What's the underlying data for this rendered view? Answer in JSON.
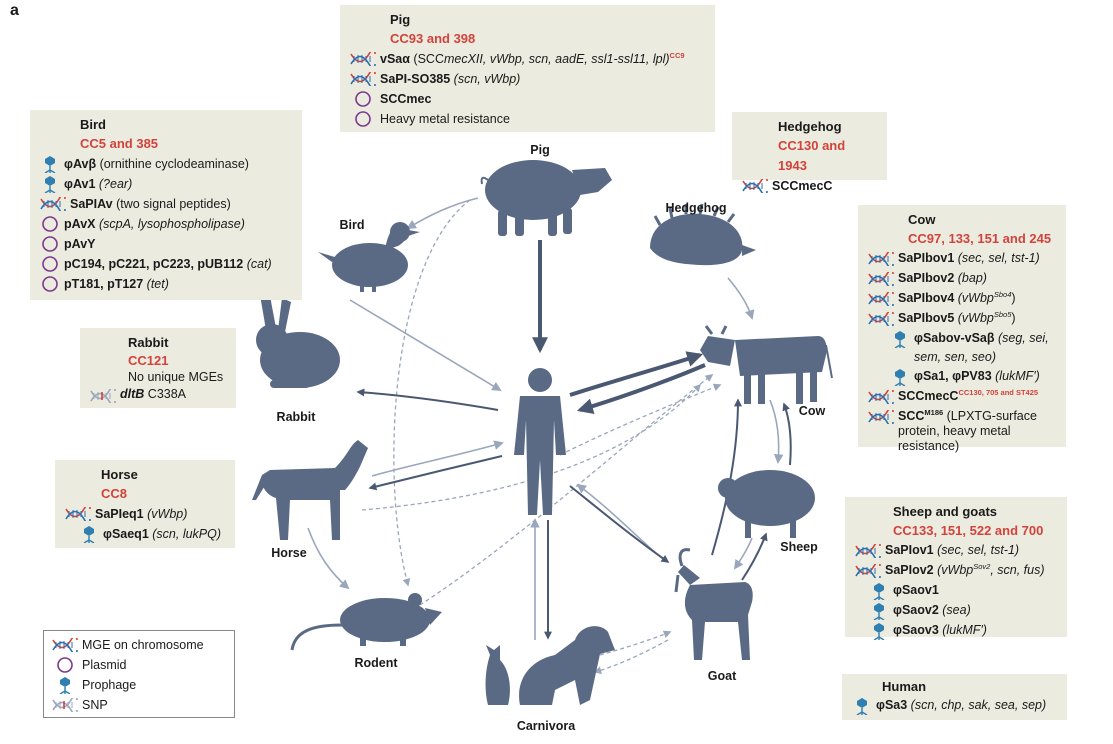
{
  "panel_label": "a",
  "animals": {
    "pig": "Pig",
    "bird": "Bird",
    "hedgehog": "Hedgehog",
    "cow": "Cow",
    "rabbit": "Rabbit",
    "horse": "Horse",
    "rodent": "Rodent",
    "carnivora": "Carnivora",
    "goat": "Goat",
    "sheep": "Sheep"
  },
  "boxes": {
    "pig": {
      "title": "Pig",
      "cc": "CC93 and 398",
      "rows": [
        {
          "icon": "dna-chromosome-icon",
          "name": "vSaα",
          "detail_open": " (SCC",
          "detail_mid_italic": "mec",
          "detail_rest": "XII, vWbp, scn, aadE, ssl1-ssl11, lpl)",
          "sup": "CC9"
        },
        {
          "icon": "dna-chromosome-icon",
          "name": "SaPI-SO385",
          "detail": " (scn, vWbp)"
        },
        {
          "icon": "plasmid-icon",
          "name": "SCCmec",
          "detail": ""
        },
        {
          "icon": "plasmid-icon",
          "name": "",
          "detail": "Heavy metal resistance"
        }
      ]
    },
    "bird": {
      "title": "Bird",
      "cc": "CC5 and 385",
      "rows": [
        {
          "icon": "prophage-icon",
          "name": "φAvβ",
          "detail": " (ornithine cyclodeaminase)"
        },
        {
          "icon": "prophage-icon",
          "name": "φAv1",
          "detail": " (?ear)"
        },
        {
          "icon": "dna-chromosome-icon",
          "name": "SaPIAv",
          "detail": " (two signal peptides)"
        },
        {
          "icon": "plasmid-icon",
          "name": "pAvX",
          "detail": " (scpA, lysophospholipase)"
        },
        {
          "icon": "plasmid-icon",
          "name": "pAvY",
          "detail": ""
        },
        {
          "icon": "plasmid-icon",
          "name": "pC194, pC221, pC223, pUB112",
          "detail": " (cat)"
        },
        {
          "icon": "plasmid-icon",
          "name": "pT181, pT127",
          "detail": " (tet)"
        }
      ]
    },
    "hedgehog": {
      "title": "Hedgehog",
      "cc": "CC130 and 1943",
      "rows": [
        {
          "icon": "dna-chromosome-icon",
          "name": "SCCmecC",
          "detail": ""
        }
      ]
    },
    "cow": {
      "title": "Cow",
      "cc": "CC97, 133, 151 and 245",
      "rows": [
        {
          "icon": "dna-chromosome-icon",
          "name": "SaPIbov1",
          "detail": " (sec, sel, tst-1)"
        },
        {
          "icon": "dna-chromosome-icon",
          "name": "SaPIbov2",
          "detail": " (bap)"
        },
        {
          "icon": "dna-chromosome-icon",
          "name": "SaPIbov4",
          "detail": " (vWbp",
          "sup": "Sbo4",
          "detail_after": ")"
        },
        {
          "icon": "dna-chromosome-icon",
          "name": "SaPIbov5",
          "detail": " (vWbp",
          "sup": "Sbo5",
          "detail_after": ")"
        },
        {
          "icon": "prophage-icon",
          "name": "φSabov-vSaβ",
          "detail": " (seg, sei, sem, sen, seo)"
        },
        {
          "icon": "prophage-icon",
          "name": "φSa1, φPV83",
          "detail": " (lukMF′)"
        },
        {
          "icon": "dna-chromosome-icon",
          "name": "SCCmecC",
          "detail": "",
          "sup": "CC130, 705 and ST425"
        },
        {
          "icon": "dna-chromosome-icon",
          "name": "SCC",
          "sup_plain": "M186",
          "detail": " (LPXTG-surface protein, heavy metal resistance)"
        }
      ]
    },
    "rabbit": {
      "title": "Rabbit",
      "cc": "CC121",
      "note": "No unique MGEs",
      "snp_gene": "dltB",
      "snp_change": " C338A"
    },
    "horse": {
      "title": "Horse",
      "cc": "CC8",
      "rows": [
        {
          "icon": "dna-chromosome-icon",
          "name": "SaPIeq1",
          "detail": " (vWbp)"
        },
        {
          "icon": "prophage-icon",
          "name": "φSaeq1",
          "detail": " (scn, lukPQ)"
        }
      ]
    },
    "sheep": {
      "title": "Sheep and goats",
      "cc": "CC133, 151, 522 and 700",
      "rows": [
        {
          "icon": "dna-chromosome-icon",
          "name": "SaPIov1",
          "detail": " (sec, sel, tst-1)"
        },
        {
          "icon": "dna-chromosome-icon",
          "name": "SaPIov2",
          "detail": " (vWbp",
          "sup": "Sov2",
          "detail_after": ", scn, fus)"
        },
        {
          "icon": "prophage-icon",
          "name": "φSaov1",
          "detail": ""
        },
        {
          "icon": "prophage-icon",
          "name": "φSaov2",
          "detail": " (sea)"
        },
        {
          "icon": "prophage-icon",
          "name": "φSaov3",
          "detail": " (lukMF′)"
        }
      ]
    },
    "human": {
      "title": "Human",
      "rows": [
        {
          "icon": "prophage-icon",
          "name": "φSa3",
          "detail": " (scn, chp, sak, sea, sep)"
        }
      ]
    }
  },
  "legend": {
    "items": [
      {
        "icon": "dna-chromosome-icon",
        "label": "MGE on chromosome"
      },
      {
        "icon": "plasmid-icon",
        "label": "Plasmid"
      },
      {
        "icon": "prophage-icon",
        "label": "Prophage"
      },
      {
        "icon": "snp-icon",
        "label": "SNP"
      }
    ]
  },
  "colors": {
    "box_bg": "#ecebe0",
    "cc_red": "#d2433b",
    "silhouette": "#5a6a85",
    "arrow_dark": "#4a5872",
    "arrow_light": "#9aa6bc",
    "plasmid_purple": "#7a3a8c",
    "prophage_blue": "#2f7fb0",
    "dna_red": "#d2433b",
    "dna_blue": "#2a6fb0"
  }
}
